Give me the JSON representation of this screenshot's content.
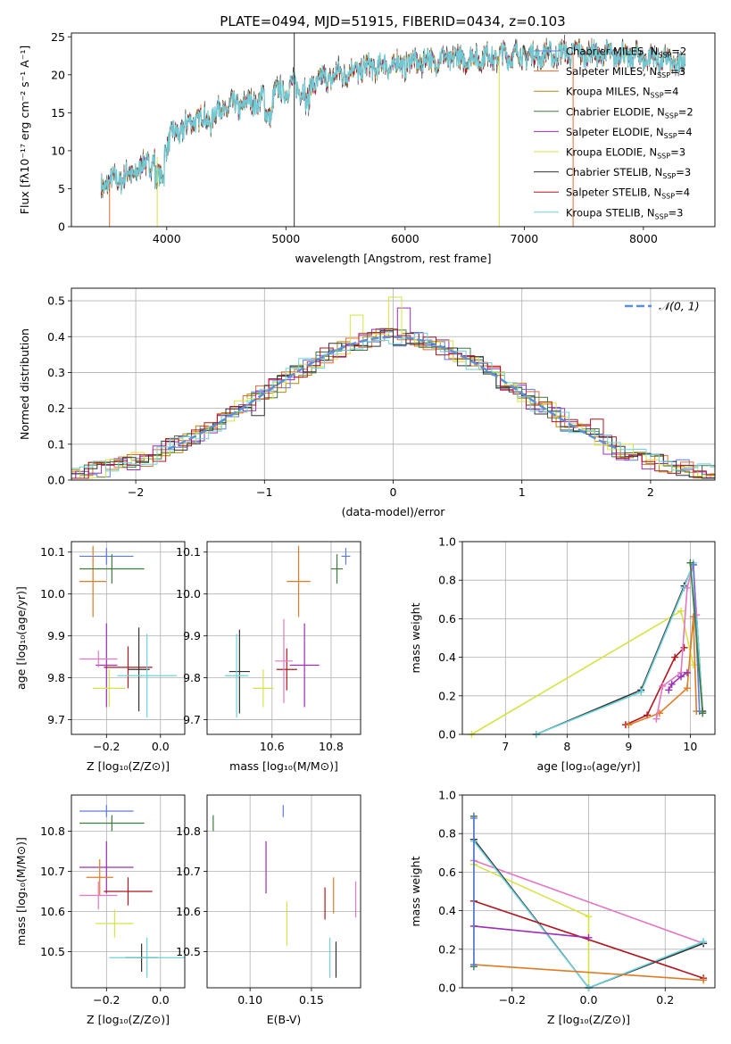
{
  "colors": {
    "chabrier_miles": "#5f7ddb",
    "salpeter_miles": "#e8692e",
    "kroupa_miles": "#b8860b",
    "chabrier_elodie": "#3e7c3e",
    "salpeter_elodie": "#9b30b5",
    "kroupa_elodie": "#d7e344",
    "chabrier_stelib": "#333333",
    "salpeter_stelib": "#b0171f",
    "kroupa_stelib": "#6fd2dc",
    "pink": "#e377c2",
    "orange": "#e07b25",
    "gaussian": "#5b8fd9",
    "grid": "#b0b0b0"
  },
  "chart_data": [
    {
      "id": "spectrum",
      "type": "line",
      "title": "PLATE=0494, MJD=51915, FIBERID=0434, z=0.103",
      "xlabel": "wavelength [Angstrom, rest frame]",
      "ylabel": "Flux [fλ10⁻¹⁷ erg cm⁻² s⁻¹ A⁻¹]",
      "xlim": [
        3200,
        8600
      ],
      "ylim": [
        0,
        25.5
      ],
      "xticks": [
        "4000",
        "5000",
        "6000",
        "7000",
        "8000"
      ],
      "yticks": [
        "0",
        "5",
        "10",
        "15",
        "20",
        "25"
      ],
      "grid": false,
      "legend_position": "right",
      "legend": [
        {
          "label": "Chabrier MILES, N",
          "sub": "SSP",
          "suffix": "=2",
          "color": "chabrier_miles"
        },
        {
          "label": "Salpeter MILES, N",
          "sub": "SSP",
          "suffix": "=3",
          "color": "salpeter_miles"
        },
        {
          "label": "Kroupa MILES, N",
          "sub": "SSP",
          "suffix": "=4",
          "color": "kroupa_miles"
        },
        {
          "label": "Chabrier ELODIE, N",
          "sub": "SSP",
          "suffix": "=2",
          "color": "chabrier_elodie"
        },
        {
          "label": "Salpeter ELODIE, N",
          "sub": "SSP",
          "suffix": "=4",
          "color": "salpeter_elodie"
        },
        {
          "label": "Kroupa ELODIE, N",
          "sub": "SSP",
          "suffix": "=3",
          "color": "kroupa_elodie"
        },
        {
          "label": "Chabrier STELIB, N",
          "sub": "SSP",
          "suffix": "=3",
          "color": "chabrier_stelib"
        },
        {
          "label": "Salpeter STELIB, N",
          "sub": "SSP",
          "suffix": "=4",
          "color": "salpeter_stelib"
        },
        {
          "label": "Kroupa STELIB, N",
          "sub": "SSP",
          "suffix": "=3",
          "color": "kroupa_stelib"
        }
      ],
      "spectrum_points": [
        [
          3450,
          5.5
        ],
        [
          3550,
          6.0
        ],
        [
          3650,
          6.5
        ],
        [
          3750,
          7.5
        ],
        [
          3850,
          8.5
        ],
        [
          3950,
          9.5
        ],
        [
          4050,
          12.0
        ],
        [
          4150,
          13.0
        ],
        [
          4250,
          14.5
        ],
        [
          4350,
          14.0
        ],
        [
          4450,
          15.5
        ],
        [
          4550,
          15.8
        ],
        [
          4650,
          16.2
        ],
        [
          4750,
          16.5
        ],
        [
          4850,
          17.0
        ],
        [
          4950,
          17.8
        ],
        [
          5050,
          18.5
        ],
        [
          5150,
          18.2
        ],
        [
          5250,
          19.0
        ],
        [
          5350,
          19.6
        ],
        [
          5450,
          20.0
        ],
        [
          5550,
          20.5
        ],
        [
          5650,
          20.8
        ],
        [
          5750,
          21.0
        ],
        [
          5850,
          21.2
        ],
        [
          5950,
          21.3
        ],
        [
          6050,
          21.6
        ],
        [
          6150,
          21.8
        ],
        [
          6250,
          21.9
        ],
        [
          6350,
          22.1
        ],
        [
          6450,
          22.2
        ],
        [
          6550,
          22.1
        ],
        [
          6650,
          22.3
        ],
        [
          6750,
          22.4
        ],
        [
          6850,
          22.5
        ],
        [
          6950,
          22.6
        ],
        [
          7050,
          22.5
        ],
        [
          7150,
          22.6
        ],
        [
          7250,
          22.7
        ],
        [
          7350,
          22.9
        ],
        [
          7450,
          22.9
        ],
        [
          7550,
          22.8
        ],
        [
          7650,
          22.7
        ],
        [
          7750,
          22.6
        ],
        [
          7850,
          22.5
        ],
        [
          7950,
          22.4
        ],
        [
          8050,
          22.2
        ],
        [
          8150,
          22.0
        ],
        [
          8250,
          21.5
        ],
        [
          8350,
          21.3
        ]
      ]
    },
    {
      "id": "residuals",
      "type": "histogram",
      "xlabel": "(data-model)/error",
      "ylabel": "Normed distribution",
      "xlim": [
        -2.5,
        2.5
      ],
      "ylim": [
        0,
        0.535
      ],
      "xticks": [
        "−2",
        "−1",
        "0",
        "1",
        "2"
      ],
      "yticks": [
        "0.0",
        "0.1",
        "0.2",
        "0.3",
        "0.4",
        "0.5"
      ],
      "grid": true,
      "legend_position": "top-right",
      "legend_label": "𝒩(0, 1)",
      "gaussian": {
        "mu": 0,
        "sigma": 1,
        "range": [
          -1.75,
          1.75
        ]
      },
      "bin_width": 0.1,
      "histogram_series": [
        "chabrier_miles",
        "salpeter_miles",
        "kroupa_miles",
        "chabrier_elodie",
        "salpeter_elodie",
        "kroupa_elodie",
        "chabrier_stelib",
        "salpeter_stelib",
        "kroupa_stelib"
      ],
      "highlight_bars": [
        {
          "x": -0.3,
          "y": 0.46,
          "series": "kroupa_elodie"
        },
        {
          "x": 0.0,
          "y": 0.51,
          "series": "kroupa_elodie"
        },
        {
          "x": 0.1,
          "y": 0.48,
          "series": "salpeter_elodie"
        },
        {
          "x": -1.0,
          "y": 0.18,
          "series": "chabrier_stelib"
        },
        {
          "x": 1.6,
          "y": 0.17,
          "series": "salpeter_stelib"
        }
      ]
    },
    {
      "id": "age_vs_z",
      "type": "scatter",
      "xlabel": "Z [log₁₀(Z/Z⊙)]",
      "ylabel": "age  [log₁₀(age/yr)]",
      "xlim": [
        -0.33,
        0.09
      ],
      "ylim": [
        9.665,
        10.125
      ],
      "xticks": [
        "−0.2",
        "0.0"
      ],
      "xtick_values": [
        -0.2,
        0.0
      ],
      "yticks": [
        "9.7",
        "9.8",
        "9.9",
        "10.0",
        "10.1"
      ],
      "ytick_values": [
        9.7,
        9.8,
        9.9,
        10.0,
        10.1
      ],
      "grid": true,
      "points": [
        {
          "x": -0.2,
          "y": 10.09,
          "xerr": 0.1,
          "yerr": 0.02,
          "color": "chabrier_miles"
        },
        {
          "x": -0.25,
          "y": 10.03,
          "xerr": 0.05,
          "yerr": 0.085,
          "color": "orange"
        },
        {
          "x": -0.18,
          "y": 10.06,
          "xerr": 0.12,
          "yerr": 0.035,
          "color": "chabrier_elodie"
        },
        {
          "x": -0.2,
          "y": 9.83,
          "xerr": 0.04,
          "yerr": 0.1,
          "color": "salpeter_elodie"
        },
        {
          "x": -0.23,
          "y": 9.845,
          "xerr": 0.07,
          "yerr": 0.02,
          "color": "pink"
        },
        {
          "x": -0.19,
          "y": 9.775,
          "xerr": 0.06,
          "yerr": 0.045,
          "color": "kroupa_elodie"
        },
        {
          "x": -0.12,
          "y": 9.825,
          "xerr": 0.09,
          "yerr": 0.05,
          "color": "salpeter_stelib"
        },
        {
          "x": -0.08,
          "y": 9.82,
          "xerr": 0.04,
          "yerr": 0.1,
          "color": "chabrier_stelib"
        },
        {
          "x": -0.05,
          "y": 9.805,
          "xerr": 0.11,
          "yerr": 0.1,
          "color": "kroupa_stelib"
        }
      ]
    },
    {
      "id": "age_vs_mass",
      "type": "scatter",
      "xlabel": "mass [log₁₀(M/M⊙)]",
      "ylabel": "",
      "xlim": [
        10.38,
        10.9
      ],
      "ylim": [
        9.665,
        10.125
      ],
      "xticks": [
        "10.6",
        "10.8"
      ],
      "xtick_values": [
        10.6,
        10.8
      ],
      "yticks": [
        "9.7",
        "9.8",
        "9.9",
        "10.0",
        "10.1"
      ],
      "ytick_values": [
        9.7,
        9.8,
        9.9,
        10.0,
        10.1
      ],
      "grid": true,
      "points": [
        {
          "x": 10.85,
          "y": 10.09,
          "xerr": 0.015,
          "yerr": 0.02,
          "color": "chabrier_miles"
        },
        {
          "x": 10.82,
          "y": 10.06,
          "xerr": 0.02,
          "yerr": 0.035,
          "color": "chabrier_elodie"
        },
        {
          "x": 10.69,
          "y": 10.03,
          "xerr": 0.04,
          "yerr": 0.085,
          "color": "orange"
        },
        {
          "x": 10.71,
          "y": 9.83,
          "xerr": 0.05,
          "yerr": 0.1,
          "color": "salpeter_elodie"
        },
        {
          "x": 10.65,
          "y": 9.82,
          "xerr": 0.035,
          "yerr": 0.05,
          "color": "salpeter_stelib"
        },
        {
          "x": 10.64,
          "y": 9.84,
          "xerr": 0.03,
          "yerr": 0.1,
          "color": "pink"
        },
        {
          "x": 10.57,
          "y": 9.775,
          "xerr": 0.035,
          "yerr": 0.045,
          "color": "kroupa_elodie"
        },
        {
          "x": 10.49,
          "y": 9.815,
          "xerr": 0.035,
          "yerr": 0.1,
          "color": "chabrier_stelib"
        },
        {
          "x": 10.48,
          "y": 9.805,
          "xerr": 0.04,
          "yerr": 0.1,
          "color": "kroupa_stelib"
        }
      ]
    },
    {
      "id": "weight_vs_age",
      "type": "line",
      "xlabel": "age  [log₁₀(age/yr)]",
      "ylabel": "mass weight",
      "xlim": [
        6.3,
        10.4
      ],
      "ylim": [
        0,
        1.0
      ],
      "xticks": [
        "7",
        "8",
        "9",
        "10"
      ],
      "xtick_values": [
        7,
        8,
        9,
        10
      ],
      "yticks": [
        "0.0",
        "0.2",
        "0.4",
        "0.6",
        "0.8",
        "1.0"
      ],
      "ytick_values": [
        0,
        0.2,
        0.4,
        0.6,
        0.8,
        1.0
      ],
      "grid": true,
      "series": [
        {
          "name": "",
          "color": "kroupa_elodie",
          "x": [
            6.45,
            9.85,
            10.05
          ],
          "y": [
            0.0,
            0.64,
            0.36
          ]
        },
        {
          "name": "",
          "color": "chabrier_stelib",
          "x": [
            7.5,
            9.2,
            9.9,
            10.05,
            10.2
          ],
          "y": [
            0.0,
            0.23,
            0.77,
            0.88,
            0.12
          ]
        },
        {
          "name": "",
          "color": "kroupa_stelib",
          "x": [
            7.5,
            9.2,
            9.9,
            10.05,
            10.2
          ],
          "y": [
            0.0,
            0.22,
            0.76,
            0.89,
            0.11
          ]
        },
        {
          "name": "",
          "color": "salpeter_stelib",
          "x": [
            8.95,
            9.3,
            9.75,
            9.9
          ],
          "y": [
            0.05,
            0.1,
            0.4,
            0.45
          ]
        },
        {
          "name": "",
          "color": "orange",
          "x": [
            9.0,
            9.5,
            9.95,
            10.05,
            10.1
          ],
          "y": [
            0.05,
            0.11,
            0.24,
            0.61,
            0.12
          ]
        },
        {
          "name": "",
          "color": "pink",
          "x": [
            9.45,
            9.55,
            9.85,
            9.95,
            10.05,
            10.1
          ],
          "y": [
            0.08,
            0.25,
            0.32,
            0.76,
            0.88,
            0.62
          ]
        },
        {
          "name": "",
          "color": "salpeter_elodie",
          "x": [
            9.65,
            9.7,
            9.85,
            9.95
          ],
          "y": [
            0.23,
            0.26,
            0.3,
            0.32
          ]
        },
        {
          "name": "",
          "color": "chabrier_miles",
          "x": [
            10.05,
            10.15
          ],
          "y": [
            0.88,
            0.12
          ]
        },
        {
          "name": "",
          "color": "chabrier_elodie",
          "x": [
            10.0,
            10.2
          ],
          "y": [
            0.89,
            0.11
          ]
        }
      ]
    },
    {
      "id": "mass_vs_z",
      "type": "scatter",
      "xlabel": "Z [log₁₀(Z/Z⊙)]",
      "ylabel": "mass [log₁₀(M/M⊙)]",
      "xlim": [
        -0.33,
        0.09
      ],
      "ylim": [
        10.41,
        10.89
      ],
      "xticks": [
        "−0.2",
        "0.0"
      ],
      "xtick_values": [
        -0.2,
        0.0
      ],
      "yticks": [
        "10.5",
        "10.6",
        "10.7",
        "10.8"
      ],
      "ytick_values": [
        10.5,
        10.6,
        10.7,
        10.8
      ],
      "grid": true,
      "points": [
        {
          "x": -0.2,
          "y": 10.85,
          "xerr": 0.1,
          "yerr": 0.015,
          "color": "chabrier_miles"
        },
        {
          "x": -0.18,
          "y": 10.82,
          "xerr": 0.12,
          "yerr": 0.02,
          "color": "chabrier_elodie"
        },
        {
          "x": -0.2,
          "y": 10.71,
          "xerr": 0.1,
          "yerr": 0.065,
          "color": "salpeter_elodie"
        },
        {
          "x": -0.225,
          "y": 10.685,
          "xerr": 0.05,
          "yerr": 0.045,
          "color": "orange"
        },
        {
          "x": -0.23,
          "y": 10.64,
          "xerr": 0.07,
          "yerr": 0.035,
          "color": "pink"
        },
        {
          "x": -0.12,
          "y": 10.65,
          "xerr": 0.09,
          "yerr": 0.035,
          "color": "salpeter_stelib"
        },
        {
          "x": -0.17,
          "y": 10.57,
          "xerr": 0.07,
          "yerr": 0.035,
          "color": "kroupa_elodie"
        },
        {
          "x": -0.07,
          "y": 10.485,
          "xerr": 0.06,
          "yerr": 0.035,
          "color": "chabrier_stelib"
        },
        {
          "x": -0.05,
          "y": 10.485,
          "xerr": 0.14,
          "yerr": 0.05,
          "color": "kroupa_stelib"
        }
      ]
    },
    {
      "id": "mass_vs_ebv",
      "type": "scatter",
      "xlabel": "E(B-V)",
      "ylabel": "",
      "xlim": [
        0.065,
        0.19
      ],
      "ylim": [
        10.41,
        10.89
      ],
      "xticks": [
        "0.10",
        "0.15"
      ],
      "xtick_values": [
        0.1,
        0.15
      ],
      "yticks": [
        "10.5",
        "10.6",
        "10.7",
        "10.8"
      ],
      "ytick_values": [
        10.5,
        10.6,
        10.7,
        10.8
      ],
      "grid": true,
      "points": [
        {
          "x": 0.07,
          "y": 10.82,
          "xerr": 0,
          "yerr": 0.02,
          "color": "chabrier_elodie"
        },
        {
          "x": 0.127,
          "y": 10.85,
          "xerr": 0,
          "yerr": 0.015,
          "color": "chabrier_miles"
        },
        {
          "x": 0.113,
          "y": 10.71,
          "xerr": 0,
          "yerr": 0.065,
          "color": "salpeter_elodie"
        },
        {
          "x": 0.13,
          "y": 10.57,
          "xerr": 0,
          "yerr": 0.055,
          "color": "kroupa_elodie"
        },
        {
          "x": 0.161,
          "y": 10.62,
          "xerr": 0,
          "yerr": 0.04,
          "color": "salpeter_stelib"
        },
        {
          "x": 0.168,
          "y": 10.64,
          "xerr": 0,
          "yerr": 0.045,
          "color": "orange"
        },
        {
          "x": 0.186,
          "y": 10.63,
          "xerr": 0,
          "yerr": 0.045,
          "color": "pink"
        },
        {
          "x": 0.165,
          "y": 10.485,
          "xerr": 0,
          "yerr": 0.05,
          "color": "kroupa_stelib"
        },
        {
          "x": 0.17,
          "y": 10.48,
          "xerr": 0,
          "yerr": 0.045,
          "color": "chabrier_stelib"
        }
      ]
    },
    {
      "id": "weight_vs_z",
      "type": "line",
      "xlabel": "Z [log₁₀(Z/Z⊙)]",
      "ylabel": "mass weight",
      "xlim": [
        -0.33,
        0.33
      ],
      "ylim": [
        0,
        1.0
      ],
      "xticks": [
        "−0.2",
        "0.0",
        "0.2"
      ],
      "xtick_values": [
        -0.2,
        0.0,
        0.2
      ],
      "yticks": [
        "0.0",
        "0.2",
        "0.4",
        "0.6",
        "0.8",
        "1.0"
      ],
      "ytick_values": [
        0,
        0.2,
        0.4,
        0.6,
        0.8,
        1.0
      ],
      "grid": true,
      "series": [
        {
          "name": "",
          "color": "pink",
          "x": [
            -0.3,
            0.3
          ],
          "y": [
            0.66,
            0.23
          ]
        },
        {
          "name": "",
          "color": "kroupa_elodie",
          "x": [
            -0.3,
            0.0,
            0.0
          ],
          "y": [
            0.64,
            0.37,
            0.0
          ]
        },
        {
          "name": "",
          "color": "chabrier_stelib",
          "x": [
            -0.3,
            0.0,
            0.3
          ],
          "y": [
            0.77,
            0.0,
            0.23
          ]
        },
        {
          "name": "",
          "color": "kroupa_stelib",
          "x": [
            -0.3,
            0.0,
            0.3
          ],
          "y": [
            0.76,
            0.0,
            0.24
          ]
        },
        {
          "name": "",
          "color": "salpeter_stelib",
          "x": [
            -0.3,
            0.3
          ],
          "y": [
            0.45,
            0.05
          ]
        },
        {
          "name": "",
          "color": "salpeter_elodie",
          "x": [
            -0.3,
            0.0
          ],
          "y": [
            0.32,
            0.26
          ]
        },
        {
          "name": "",
          "color": "orange",
          "x": [
            -0.3,
            0.3
          ],
          "y": [
            0.12,
            0.04
          ]
        },
        {
          "name": "",
          "color": "chabrier_elodie",
          "x": [
            -0.3,
            -0.3
          ],
          "y": [
            0.11,
            0.89
          ]
        },
        {
          "name": "",
          "color": "chabrier_miles",
          "x": [
            -0.3,
            -0.3
          ],
          "y": [
            0.12,
            0.88
          ]
        }
      ]
    }
  ]
}
